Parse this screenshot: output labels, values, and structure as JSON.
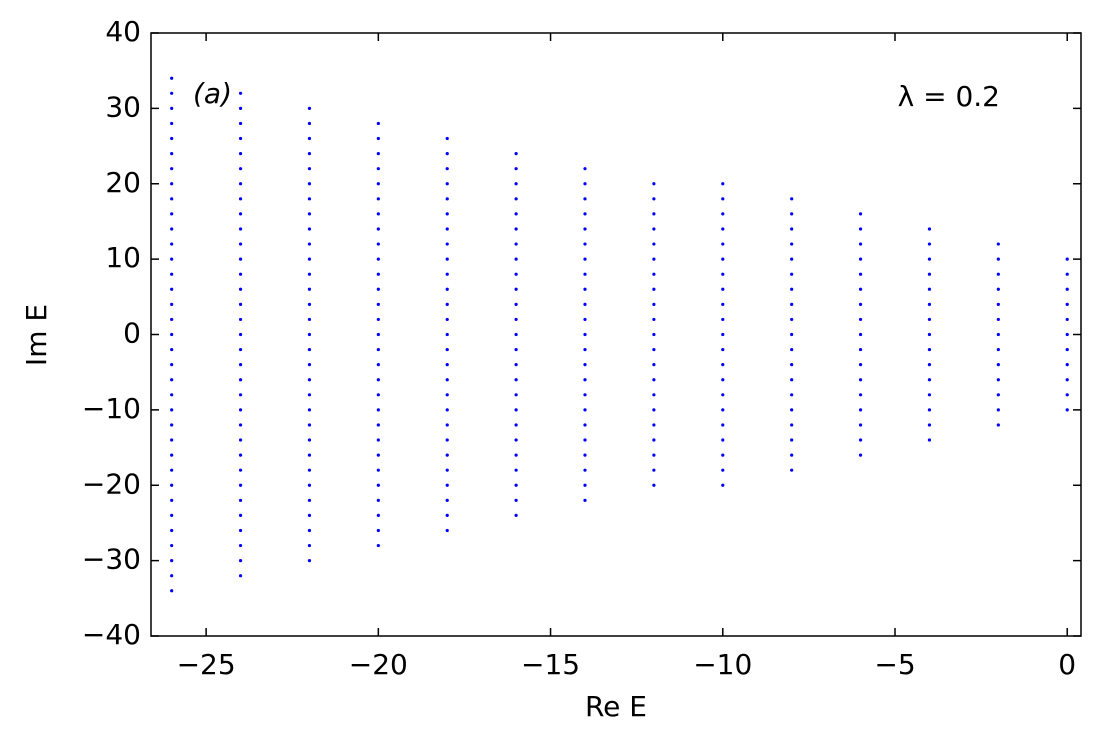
{
  "chart_data": {
    "type": "scatter",
    "xlabel": "Re E",
    "ylabel": "Im E",
    "annotations": [
      "(a)",
      "λ = 0.2"
    ],
    "color": "#0000ff",
    "xlim": [
      -26.6,
      0.4
    ],
    "ylim": [
      -40,
      40
    ],
    "xticks": [
      {
        "value": -25,
        "label": "−25"
      },
      {
        "value": -20,
        "label": "−20"
      },
      {
        "value": -15,
        "label": "−15"
      },
      {
        "value": -10,
        "label": "−10"
      },
      {
        "value": -5,
        "label": "−5"
      },
      0
    ],
    "yticks": [
      {
        "value": -40,
        "label": "−40"
      },
      {
        "value": -30,
        "label": "−30"
      },
      {
        "value": -20,
        "label": "−20"
      },
      {
        "value": -10,
        "label": "−10"
      },
      0,
      10,
      20,
      30,
      40
    ],
    "grid": false,
    "columns": [
      {
        "x": 0,
        "y": [
          -10,
          -8,
          -6,
          -4,
          -2,
          0,
          2,
          4,
          6,
          8,
          10
        ]
      },
      {
        "x": -2,
        "y": [
          -12,
          -10,
          -8,
          -6,
          -4,
          -2,
          0,
          2,
          4,
          6,
          8,
          10,
          12
        ]
      },
      {
        "x": -4,
        "y": [
          -14,
          -12,
          -10,
          -8,
          -6,
          -4,
          -2,
          0,
          2,
          4,
          6,
          8,
          10,
          12,
          14
        ]
      },
      {
        "x": -6,
        "y": [
          -16,
          -14,
          -12,
          -10,
          -8,
          -6,
          -4,
          -2,
          0,
          2,
          4,
          6,
          8,
          10,
          12,
          14,
          16
        ]
      },
      {
        "x": -8,
        "y": [
          -18,
          -16,
          -14,
          -12,
          -10,
          -8,
          -6,
          -4,
          -2,
          0,
          2,
          4,
          6,
          8,
          10,
          12,
          14,
          16,
          18
        ]
      },
      {
        "x": -10,
        "y": [
          -20,
          -18,
          -16,
          -14,
          -12,
          -10,
          -8,
          -6,
          -4,
          -2,
          0,
          2,
          4,
          6,
          8,
          10,
          12,
          14,
          16,
          18,
          20
        ]
      },
      {
        "x": -12,
        "y": [
          -20,
          -18,
          -16,
          -14,
          -12,
          -10,
          -8,
          -6,
          -4,
          -2,
          0,
          2,
          4,
          6,
          8,
          10,
          12,
          14,
          16,
          18,
          20
        ]
      },
      {
        "x": -14,
        "y": [
          -22,
          -20,
          -18,
          -16,
          -14,
          -12,
          -10,
          -8,
          -6,
          -4,
          -2,
          0,
          2,
          4,
          6,
          8,
          10,
          12,
          14,
          16,
          18,
          20,
          22
        ]
      },
      {
        "x": -16,
        "y": [
          -24,
          -22,
          -20,
          -18,
          -16,
          -14,
          -12,
          -10,
          -8,
          -6,
          -4,
          -2,
          0,
          2,
          4,
          6,
          8,
          10,
          12,
          14,
          16,
          18,
          20,
          22,
          24
        ]
      },
      {
        "x": -18,
        "y": [
          -26,
          -24,
          -22,
          -20,
          -18,
          -16,
          -14,
          -12,
          -10,
          -8,
          -6,
          -4,
          -2,
          0,
          2,
          4,
          6,
          8,
          10,
          12,
          14,
          16,
          18,
          20,
          22,
          24,
          26
        ]
      },
      {
        "x": -20,
        "y": [
          -28,
          -26,
          -24,
          -22,
          -20,
          -18,
          -16,
          -14,
          -12,
          -10,
          -8,
          -6,
          -4,
          -2,
          0,
          2,
          4,
          6,
          8,
          10,
          12,
          14,
          16,
          18,
          20,
          22,
          24,
          26,
          28
        ]
      },
      {
        "x": -22,
        "y": [
          -30,
          -28,
          -26,
          -24,
          -22,
          -20,
          -18,
          -16,
          -14,
          -12,
          -10,
          -8,
          -6,
          -4,
          -2,
          0,
          2,
          4,
          6,
          8,
          10,
          12,
          14,
          16,
          18,
          20,
          22,
          24,
          26,
          28,
          30
        ]
      },
      {
        "x": -24,
        "y": [
          -32,
          -30,
          -28,
          -26,
          -24,
          -22,
          -20,
          -18,
          -16,
          -14,
          -12,
          -10,
          -8,
          -6,
          -4,
          -2,
          0,
          2,
          4,
          6,
          8,
          10,
          12,
          14,
          16,
          18,
          20,
          22,
          24,
          26,
          28,
          30,
          32
        ]
      },
      {
        "x": -26,
        "y": [
          -34,
          -32,
          -30,
          -28,
          -26,
          -24,
          -22,
          -20,
          -18,
          -16,
          -14,
          -12,
          -10,
          -8,
          -6,
          -4,
          -2,
          0,
          2,
          4,
          6,
          8,
          10,
          12,
          14,
          16,
          18,
          20,
          22,
          24,
          26,
          28,
          30,
          32,
          34
        ]
      }
    ]
  }
}
